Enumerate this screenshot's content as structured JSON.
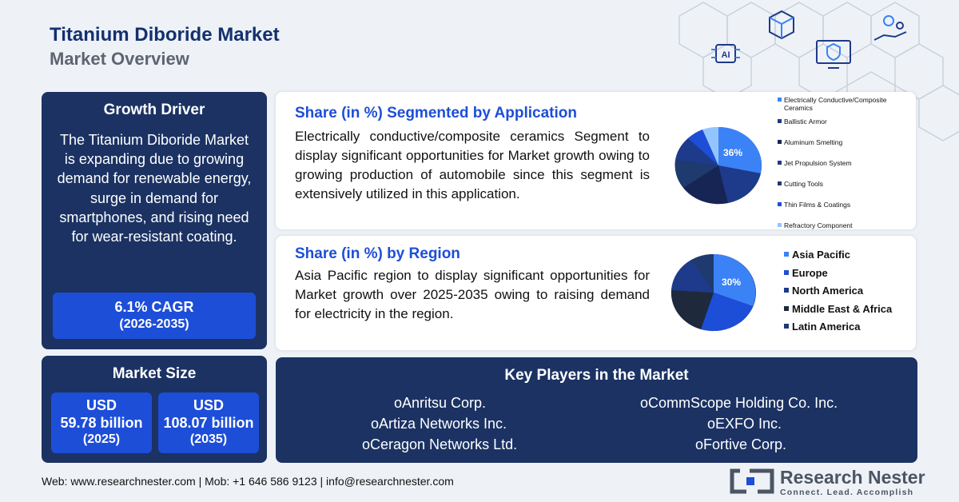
{
  "header": {
    "title": "Titanium Diboride Market",
    "subtitle": "Market Overview"
  },
  "growth_driver": {
    "heading": "Growth Driver",
    "text": "The Titanium Diboride Market is expanding due to growing demand for renewable energy, surge in demand for smartphones, and rising need for wear-resistant coating.",
    "cagr": "6.1% CAGR",
    "cagr_period": "(2026-2035)"
  },
  "market_size": {
    "heading": "Market Size",
    "items": [
      {
        "currency": "USD",
        "value": "59.78 billion",
        "year": "(2025)"
      },
      {
        "currency": "USD",
        "value": "108.07 billion",
        "year": "(2035)"
      }
    ]
  },
  "application": {
    "heading": "Share (in %) Segmented by Application",
    "text": "Electrically conductive/composite ceramics Segment to display significant opportunities for Market growth owing to growing production of automobile since this segment is extensively utilized in this application.",
    "pie_label": "36%",
    "legend": [
      {
        "label": "Electrically Conductive/Composite Ceramics",
        "color": "#3b82f6"
      },
      {
        "label": "Ballistic Armor",
        "color": "#1e3a8a"
      },
      {
        "label": "Aluminum Smelting",
        "color": "#172554"
      },
      {
        "label": "Jet Propulsion System",
        "color": "#1e3a8a"
      },
      {
        "label": "Cutting Tools",
        "color": "#1e3a6e"
      },
      {
        "label": "Thin Films & Coatings",
        "color": "#1d4ed8"
      },
      {
        "label": "Refractory Component",
        "color": "#93c5fd"
      }
    ]
  },
  "region": {
    "heading": "Share (in %) by Region",
    "text": "Asia Pacific region to display significant opportunities for Market growth over 2025-2035 owing to raising demand for electricity in the region.",
    "pie_label": "30%",
    "legend": [
      {
        "label": "Asia Pacific",
        "color": "#3b82f6"
      },
      {
        "label": "Europe",
        "color": "#1d4ed8"
      },
      {
        "label": "North America",
        "color": "#1e3a8a"
      },
      {
        "label": "Middle East & Africa",
        "color": "#1e293b"
      },
      {
        "label": "Latin America",
        "color": "#1e3a6e"
      }
    ]
  },
  "players": {
    "heading": "Key Players in the Market",
    "left": [
      "oAnritsu Corp.",
      "oArtiza Networks Inc.",
      "oCeragon Networks Ltd."
    ],
    "right": [
      "oCommScope Holding Co. Inc.",
      "oEXFO Inc.",
      "oFortive Corp."
    ]
  },
  "footer": {
    "contact": "Web: www.researchnester.com | Mob: +1 646 586 9123 | info@researchnester.com"
  },
  "logo": {
    "name": "Research Nester",
    "tagline": "Connect. Lead. Accomplish"
  }
}
